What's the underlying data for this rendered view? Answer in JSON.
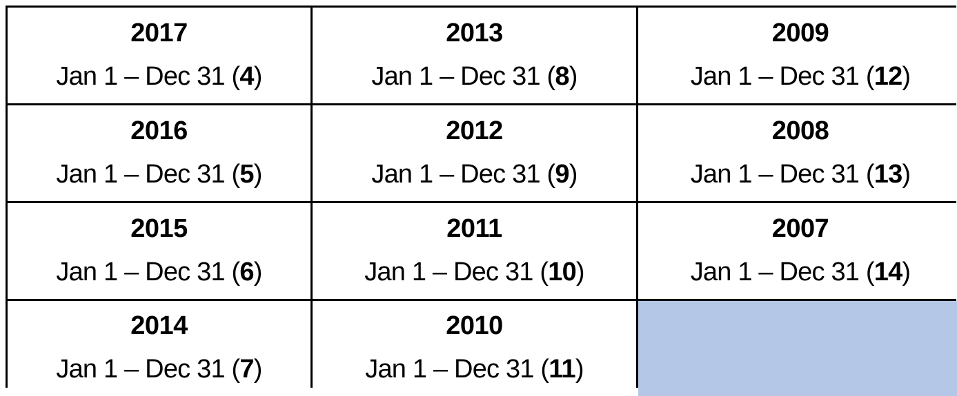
{
  "cells": [
    {
      "year": "2017",
      "range": "Jan 1 – Dec 31",
      "count": "4"
    },
    {
      "year": "2016",
      "range": "Jan 1 – Dec 31",
      "count": "5"
    },
    {
      "year": "2015",
      "range": "Jan 1 – Dec 31",
      "count": "6"
    },
    {
      "year": "2014",
      "range": "Jan 1 – Dec 31",
      "count": "7"
    },
    {
      "year": "2013",
      "range": "Jan 1 – Dec 31",
      "count": "8"
    },
    {
      "year": "2012",
      "range": "Jan 1 – Dec 31",
      "count": "9"
    },
    {
      "year": "2011",
      "range": "Jan 1 – Dec 31",
      "count": "10"
    },
    {
      "year": "2010",
      "range": "Jan 1 – Dec 31",
      "count": "11"
    },
    {
      "year": "2009",
      "range": "Jan 1 – Dec 31",
      "count": "12"
    },
    {
      "year": "2008",
      "range": "Jan 1 – Dec 31",
      "count": "13"
    },
    {
      "year": "2007",
      "range": "Jan 1 – Dec 31",
      "count": "14"
    }
  ],
  "empty_cell_color": "#b4c7e7"
}
